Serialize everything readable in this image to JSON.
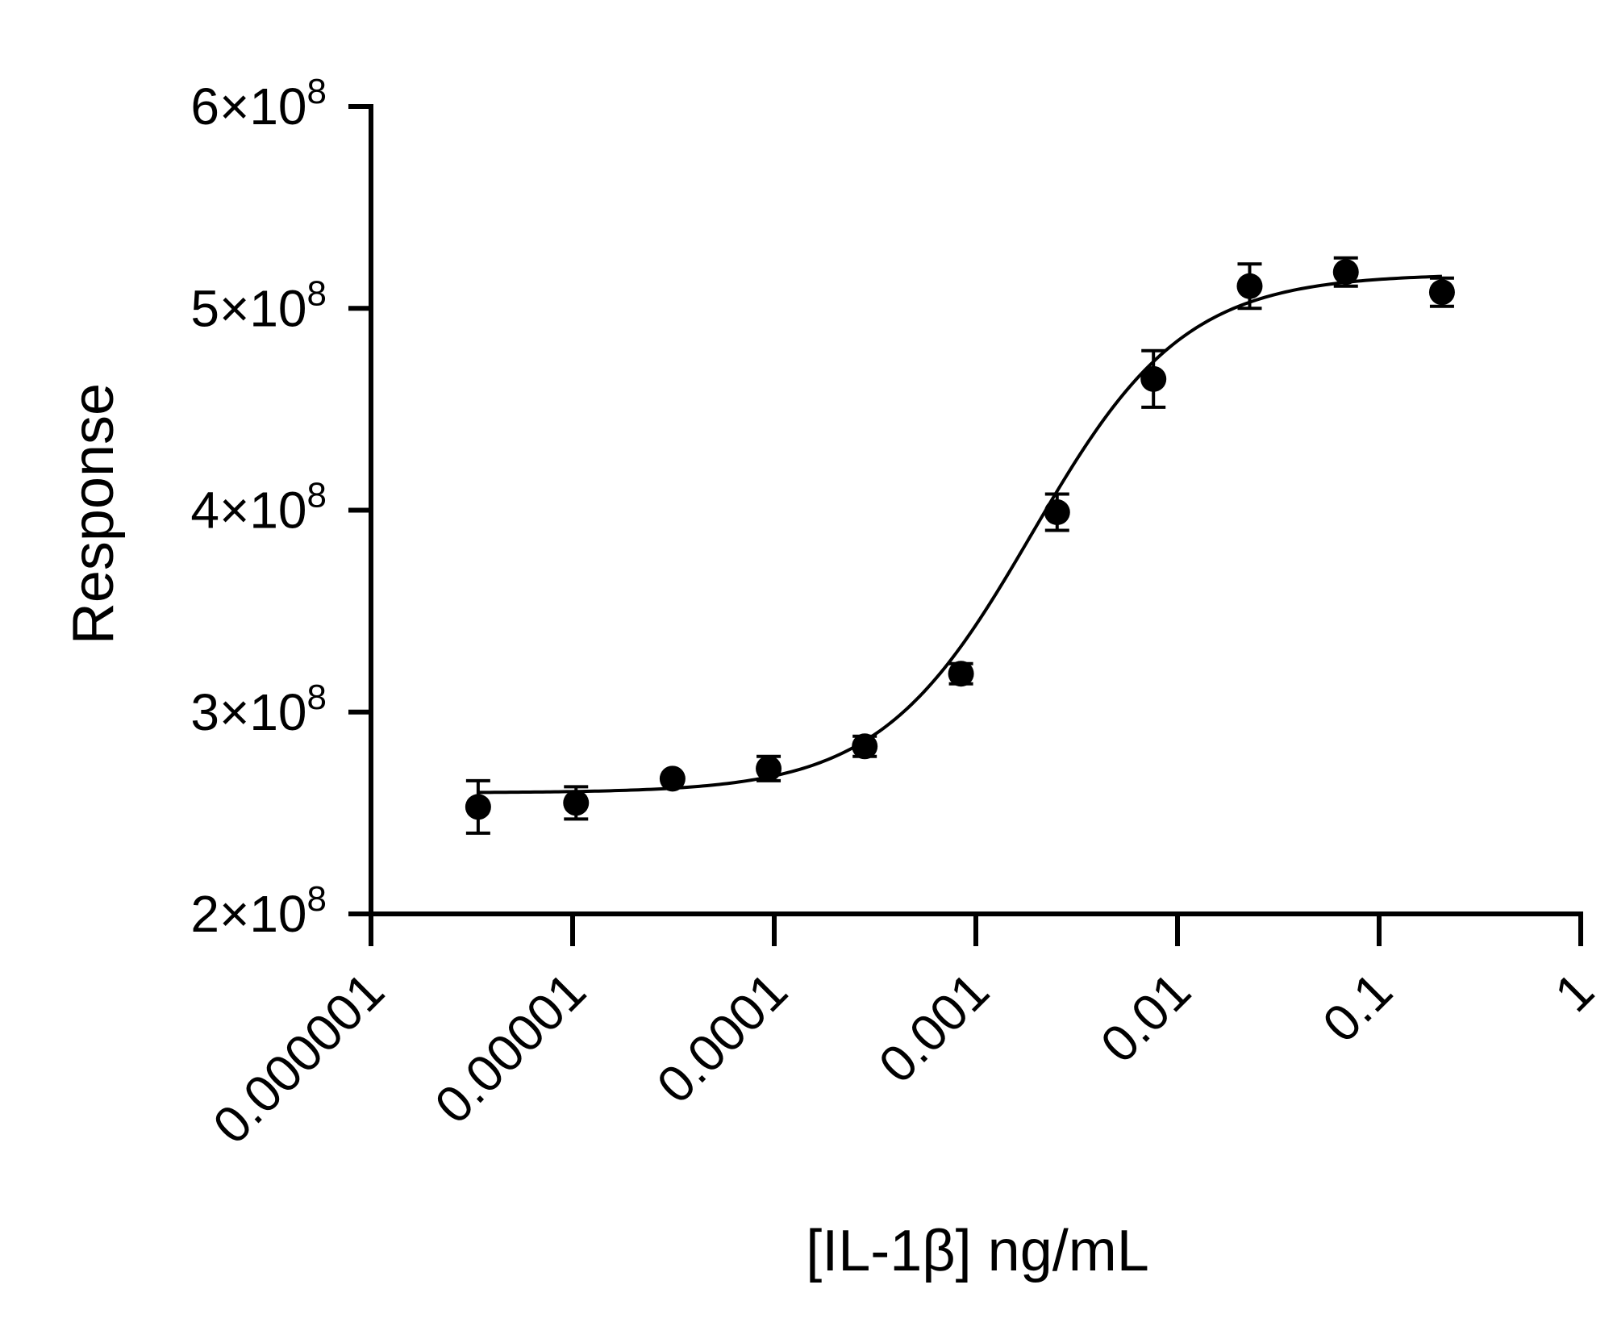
{
  "chart_data": {
    "type": "scatter",
    "title": "",
    "xlabel": "[IL-1β] ng/mL",
    "ylabel": "Response",
    "x_scale": "log",
    "xlim": [
      1e-06,
      1
    ],
    "ylim": [
      200000000,
      600000000
    ],
    "x_ticks": [
      {
        "value": 1e-06,
        "label": "0.000001"
      },
      {
        "value": 1e-05,
        "label": "0.00001"
      },
      {
        "value": 0.0001,
        "label": "0.0001"
      },
      {
        "value": 0.001,
        "label": "0.001"
      },
      {
        "value": 0.01,
        "label": "0.01"
      },
      {
        "value": 0.1,
        "label": "0.1"
      },
      {
        "value": 1,
        "label": "1"
      }
    ],
    "y_ticks": [
      {
        "value": 200000000,
        "mantissa": "2",
        "base": "×10",
        "exp": "8"
      },
      {
        "value": 300000000,
        "mantissa": "3",
        "base": "×10",
        "exp": "8"
      },
      {
        "value": 400000000,
        "mantissa": "4",
        "base": "×10",
        "exp": "8"
      },
      {
        "value": 500000000,
        "mantissa": "5",
        "base": "×10",
        "exp": "8"
      },
      {
        "value": 600000000,
        "mantissa": "6",
        "base": "×10",
        "exp": "8"
      }
    ],
    "grid": false,
    "legend": "none",
    "point_color": "#000000",
    "points": [
      {
        "x": 3.4e-06,
        "y": 253000000,
        "err": 13000000
      },
      {
        "x": 1.04e-05,
        "y": 255000000,
        "err": 8000000
      },
      {
        "x": 3.13e-05,
        "y": 267000000,
        "err": 0
      },
      {
        "x": 9.38e-05,
        "y": 272000000,
        "err": 6000000
      },
      {
        "x": 0.000281,
        "y": 283000000,
        "err": 5000000
      },
      {
        "x": 0.000844,
        "y": 319000000,
        "err": 5000000
      },
      {
        "x": 0.00253,
        "y": 399000000,
        "err": 9000000
      },
      {
        "x": 0.0076,
        "y": 465000000,
        "err": 14000000
      },
      {
        "x": 0.0228,
        "y": 511000000,
        "err": 11000000
      },
      {
        "x": 0.0684,
        "y": 518000000,
        "err": 7000000
      },
      {
        "x": 0.205,
        "y": 508000000,
        "err": 7000000
      }
    ],
    "fit": {
      "model": "four-parameter logistic",
      "bottom": 260000000,
      "top": 517000000,
      "ec50": 0.0019,
      "hill": 1.15,
      "x_range": [
        3.4e-06,
        0.205
      ]
    }
  }
}
